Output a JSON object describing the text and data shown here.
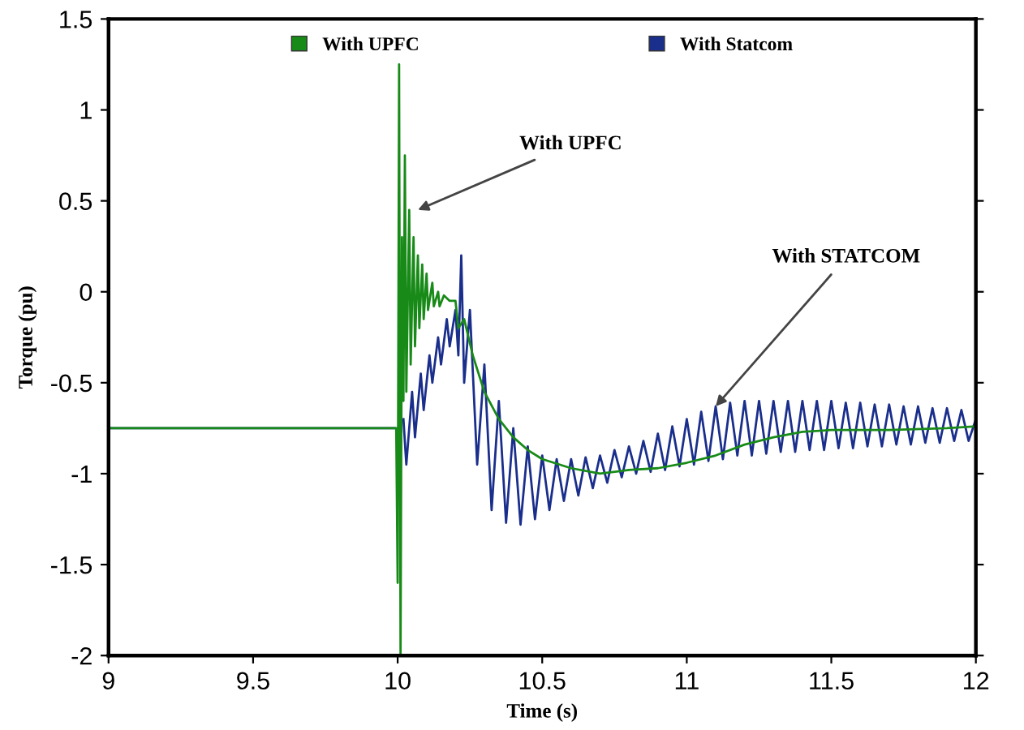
{
  "chart_data": {
    "type": "line",
    "xlabel": "Time (s)",
    "ylabel": "Torque (pu)",
    "xlim": [
      9,
      12
    ],
    "xticks": [
      9,
      9.5,
      10,
      10.5,
      11,
      11.5,
      12
    ],
    "ylim": [
      -2,
      1.5
    ],
    "yticks": [
      -2,
      -1.5,
      -1,
      -0.5,
      0,
      0.5,
      1,
      1.5
    ],
    "grid": false,
    "legend": "top",
    "marker": "none",
    "line_style": "solid",
    "annotations": [
      {
        "text": "With UPFC",
        "x": 10.07,
        "y": 0.45
      },
      {
        "text": "With STATCOM",
        "x": 11.1,
        "y": -0.63
      }
    ],
    "series": [
      {
        "name": "With Statcom",
        "color": "#1a2e8c",
        "x": [
          9,
          9.99,
          10.005,
          10.02,
          10.03,
          10.05,
          10.06,
          10.08,
          10.09,
          10.11,
          10.12,
          10.14,
          10.15,
          10.17,
          10.18,
          10.2,
          10.21,
          10.22,
          10.23,
          10.25,
          10.275,
          10.3,
          10.325,
          10.35,
          10.375,
          10.4,
          10.425,
          10.45,
          10.475,
          10.5,
          10.525,
          10.55,
          10.575,
          10.6,
          10.625,
          10.65,
          10.675,
          10.7,
          10.725,
          10.75,
          10.775,
          10.8,
          10.825,
          10.85,
          10.875,
          10.9,
          10.925,
          10.95,
          10.975,
          11.0,
          11.025,
          11.05,
          11.075,
          11.1,
          11.125,
          11.15,
          11.175,
          11.2,
          11.225,
          11.25,
          11.275,
          11.3,
          11.325,
          11.35,
          11.375,
          11.4,
          11.425,
          11.45,
          11.475,
          11.5,
          11.525,
          11.55,
          11.575,
          11.6,
          11.625,
          11.65,
          11.675,
          11.7,
          11.725,
          11.75,
          11.775,
          11.8,
          11.825,
          11.85,
          11.875,
          11.9,
          11.925,
          11.95,
          11.975,
          12
        ],
        "values": [
          -0.75,
          -0.75,
          null,
          -0.7,
          -0.95,
          -0.55,
          -0.8,
          -0.45,
          -0.65,
          -0.35,
          -0.5,
          -0.25,
          -0.4,
          -0.15,
          -0.3,
          -0.1,
          -0.35,
          0.2,
          -0.5,
          -0.1,
          -0.95,
          -0.4,
          -1.2,
          -0.6,
          -1.27,
          -0.75,
          -1.28,
          -0.85,
          -1.25,
          -0.9,
          -1.2,
          -0.92,
          -1.15,
          -0.92,
          -1.12,
          -0.91,
          -1.08,
          -0.9,
          -1.05,
          -0.87,
          -1.02,
          -0.85,
          -1.0,
          -0.82,
          -0.99,
          -0.78,
          -0.98,
          -0.74,
          -0.96,
          -0.7,
          -0.95,
          -0.66,
          -0.93,
          -0.63,
          -0.92,
          -0.61,
          -0.9,
          -0.6,
          -0.9,
          -0.6,
          -0.89,
          -0.6,
          -0.88,
          -0.6,
          -0.88,
          -0.6,
          -0.87,
          -0.6,
          -0.87,
          -0.6,
          -0.86,
          -0.61,
          -0.86,
          -0.61,
          -0.85,
          -0.62,
          -0.85,
          -0.62,
          -0.84,
          -0.63,
          -0.84,
          -0.63,
          -0.83,
          -0.64,
          -0.83,
          -0.64,
          -0.82,
          -0.65,
          -0.82,
          -0.7
        ]
      },
      {
        "name": "With UPFC",
        "color": "#188a18",
        "x": [
          9,
          9.995,
          10.0,
          10.005,
          10.01,
          10.015,
          10.02,
          10.025,
          10.03,
          10.04,
          10.045,
          10.055,
          10.06,
          10.07,
          10.075,
          10.085,
          10.09,
          10.1,
          10.105,
          10.12,
          10.125,
          10.14,
          10.145,
          10.16,
          10.18,
          10.2,
          10.21,
          10.23,
          10.26,
          10.3,
          10.35,
          10.4,
          10.45,
          10.5,
          10.6,
          10.7,
          10.8,
          10.9,
          11.0,
          11.1,
          11.2,
          11.3,
          11.4,
          11.5,
          11.7,
          11.9,
          12
        ],
        "values": [
          -0.75,
          -0.75,
          -1.6,
          1.25,
          -2.0,
          0.3,
          -0.6,
          0.75,
          -0.55,
          0.45,
          -0.4,
          0.3,
          -0.3,
          0.2,
          -0.2,
          0.15,
          -0.15,
          0.1,
          -0.1,
          0.05,
          -0.08,
          0.0,
          -0.08,
          -0.02,
          -0.05,
          -0.05,
          -0.2,
          -0.15,
          -0.35,
          -0.55,
          -0.7,
          -0.8,
          -0.87,
          -0.92,
          -0.97,
          -1.0,
          -0.98,
          -0.97,
          -0.94,
          -0.9,
          -0.84,
          -0.8,
          -0.77,
          -0.76,
          -0.76,
          -0.75,
          -0.74
        ]
      }
    ]
  }
}
